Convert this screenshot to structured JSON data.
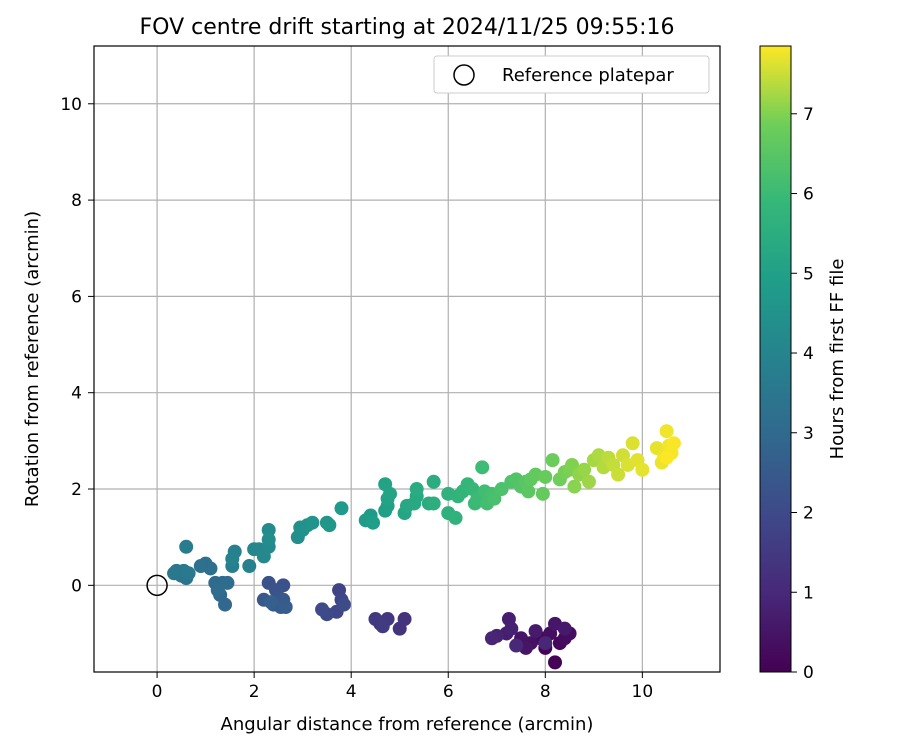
{
  "chart_data": {
    "type": "scatter",
    "title": "FOV centre drift starting at 2024/11/25 09:55:16",
    "xlabel": "Angular distance from reference (arcmin)",
    "ylabel": "Rotation from reference (arcmin)",
    "xlim": [
      -1.3,
      11.6
    ],
    "ylim": [
      -1.8,
      11.2
    ],
    "xticks": [
      0,
      2,
      4,
      6,
      8,
      10
    ],
    "yticks": [
      0,
      2,
      4,
      6,
      8,
      10
    ],
    "grid": true,
    "legend": {
      "position": "upper right",
      "entries": [
        "Reference platepar"
      ]
    },
    "reference_point": {
      "x": 0,
      "y": 0,
      "label": "Reference platepar"
    },
    "colorbar": {
      "label": "Hours from first FF file",
      "min": 0,
      "max": 7.85,
      "ticks": [
        0,
        1,
        2,
        3,
        4,
        5,
        6,
        7
      ],
      "colormap": "viridis"
    },
    "points": [
      {
        "x": 8.2,
        "y": -1.6,
        "t": 0.05
      },
      {
        "x": 8.0,
        "y": -1.3,
        "t": 0.1
      },
      {
        "x": 8.3,
        "y": -1.2,
        "t": 0.15
      },
      {
        "x": 7.9,
        "y": -1.1,
        "t": 0.2
      },
      {
        "x": 8.4,
        "y": -1.1,
        "t": 0.25
      },
      {
        "x": 8.5,
        "y": -1.0,
        "t": 0.3
      },
      {
        "x": 8.1,
        "y": -1.0,
        "t": 0.35
      },
      {
        "x": 7.7,
        "y": -1.2,
        "t": 0.4
      },
      {
        "x": 7.5,
        "y": -1.1,
        "t": 0.45
      },
      {
        "x": 7.6,
        "y": -1.3,
        "t": 0.5
      },
      {
        "x": 8.2,
        "y": -0.8,
        "t": 0.55
      },
      {
        "x": 8.4,
        "y": -0.9,
        "t": 0.6
      },
      {
        "x": 7.8,
        "y": -0.95,
        "t": 0.65
      },
      {
        "x": 7.2,
        "y": -1.0,
        "t": 0.7
      },
      {
        "x": 7.25,
        "y": -0.7,
        "t": 0.75
      },
      {
        "x": 7.3,
        "y": -0.9,
        "t": 0.8
      },
      {
        "x": 7.0,
        "y": -1.05,
        "t": 0.85
      },
      {
        "x": 6.9,
        "y": -1.1,
        "t": 0.9
      },
      {
        "x": 8.0,
        "y": -1.2,
        "t": 0.95
      },
      {
        "x": 7.4,
        "y": -1.25,
        "t": 1.0
      },
      {
        "x": 5.1,
        "y": -0.7,
        "t": 1.3
      },
      {
        "x": 5.0,
        "y": -0.9,
        "t": 1.35
      },
      {
        "x": 4.75,
        "y": -0.7,
        "t": 1.4
      },
      {
        "x": 4.6,
        "y": -0.8,
        "t": 1.45
      },
      {
        "x": 4.5,
        "y": -0.7,
        "t": 1.5
      },
      {
        "x": 4.65,
        "y": -0.85,
        "t": 1.55
      },
      {
        "x": 3.75,
        "y": -0.1,
        "t": 1.8
      },
      {
        "x": 3.8,
        "y": -0.3,
        "t": 1.85
      },
      {
        "x": 3.7,
        "y": -0.55,
        "t": 1.9
      },
      {
        "x": 3.5,
        "y": -0.6,
        "t": 1.95
      },
      {
        "x": 3.4,
        "y": -0.5,
        "t": 2.0
      },
      {
        "x": 3.85,
        "y": -0.4,
        "t": 2.05
      },
      {
        "x": 2.6,
        "y": 0.0,
        "t": 2.2
      },
      {
        "x": 2.3,
        "y": 0.05,
        "t": 2.25
      },
      {
        "x": 2.45,
        "y": -0.1,
        "t": 2.3
      },
      {
        "x": 2.5,
        "y": -0.25,
        "t": 2.35
      },
      {
        "x": 2.6,
        "y": -0.3,
        "t": 2.4
      },
      {
        "x": 2.2,
        "y": -0.3,
        "t": 2.45
      },
      {
        "x": 2.4,
        "y": -0.4,
        "t": 2.5
      },
      {
        "x": 2.55,
        "y": -0.45,
        "t": 2.55
      },
      {
        "x": 2.65,
        "y": -0.45,
        "t": 2.6
      },
      {
        "x": 2.35,
        "y": -0.35,
        "t": 2.65
      },
      {
        "x": 1.4,
        "y": -0.4,
        "t": 2.9
      },
      {
        "x": 1.3,
        "y": -0.2,
        "t": 2.95
      },
      {
        "x": 1.35,
        "y": 0.05,
        "t": 3.0
      },
      {
        "x": 1.2,
        "y": 0.05,
        "t": 3.05
      },
      {
        "x": 1.25,
        "y": -0.1,
        "t": 3.1
      },
      {
        "x": 1.45,
        "y": 0.05,
        "t": 3.15
      },
      {
        "x": 1.1,
        "y": 0.35,
        "t": 3.2
      },
      {
        "x": 1.0,
        "y": 0.45,
        "t": 3.25
      },
      {
        "x": 0.9,
        "y": 0.4,
        "t": 3.3
      },
      {
        "x": 0.6,
        "y": 0.15,
        "t": 3.35
      },
      {
        "x": 0.5,
        "y": 0.2,
        "t": 3.4
      },
      {
        "x": 0.4,
        "y": 0.3,
        "t": 3.45
      },
      {
        "x": 0.55,
        "y": 0.3,
        "t": 3.5
      },
      {
        "x": 0.35,
        "y": 0.25,
        "t": 3.55
      },
      {
        "x": 0.65,
        "y": 0.25,
        "t": 3.6
      },
      {
        "x": 0.6,
        "y": 0.8,
        "t": 3.7
      },
      {
        "x": 1.55,
        "y": 0.4,
        "t": 3.8
      },
      {
        "x": 1.6,
        "y": 0.7,
        "t": 3.85
      },
      {
        "x": 1.9,
        "y": 0.4,
        "t": 3.9
      },
      {
        "x": 1.55,
        "y": 0.55,
        "t": 3.95
      },
      {
        "x": 2.0,
        "y": 0.75,
        "t": 4.05
      },
      {
        "x": 2.1,
        "y": 0.75,
        "t": 4.1
      },
      {
        "x": 2.2,
        "y": 0.6,
        "t": 4.15
      },
      {
        "x": 2.3,
        "y": 0.8,
        "t": 4.2
      },
      {
        "x": 2.3,
        "y": 1.15,
        "t": 4.25
      },
      {
        "x": 2.3,
        "y": 0.95,
        "t": 4.3
      },
      {
        "x": 2.9,
        "y": 1.0,
        "t": 4.35
      },
      {
        "x": 2.95,
        "y": 1.2,
        "t": 4.4
      },
      {
        "x": 3.0,
        "y": 1.15,
        "t": 4.45
      },
      {
        "x": 3.1,
        "y": 1.25,
        "t": 4.5
      },
      {
        "x": 3.2,
        "y": 1.3,
        "t": 4.55
      },
      {
        "x": 3.5,
        "y": 1.3,
        "t": 4.6
      },
      {
        "x": 3.55,
        "y": 1.25,
        "t": 4.65
      },
      {
        "x": 3.8,
        "y": 1.6,
        "t": 4.75
      },
      {
        "x": 4.3,
        "y": 1.35,
        "t": 4.8
      },
      {
        "x": 4.4,
        "y": 1.45,
        "t": 4.85
      },
      {
        "x": 4.45,
        "y": 1.3,
        "t": 4.9
      },
      {
        "x": 4.7,
        "y": 1.55,
        "t": 4.95
      },
      {
        "x": 4.75,
        "y": 1.65,
        "t": 5.0
      },
      {
        "x": 4.75,
        "y": 1.8,
        "t": 5.05
      },
      {
        "x": 4.7,
        "y": 2.1,
        "t": 5.1
      },
      {
        "x": 4.8,
        "y": 1.9,
        "t": 5.15
      },
      {
        "x": 5.1,
        "y": 1.5,
        "t": 5.2
      },
      {
        "x": 5.15,
        "y": 1.65,
        "t": 5.25
      },
      {
        "x": 5.3,
        "y": 1.7,
        "t": 5.3
      },
      {
        "x": 5.35,
        "y": 1.85,
        "t": 5.35
      },
      {
        "x": 5.35,
        "y": 2.0,
        "t": 5.4
      },
      {
        "x": 5.6,
        "y": 1.7,
        "t": 5.45
      },
      {
        "x": 5.7,
        "y": 2.15,
        "t": 5.5
      },
      {
        "x": 5.7,
        "y": 1.7,
        "t": 5.55
      },
      {
        "x": 6.0,
        "y": 1.5,
        "t": 5.6
      },
      {
        "x": 6.0,
        "y": 1.9,
        "t": 5.65
      },
      {
        "x": 6.15,
        "y": 1.4,
        "t": 5.7
      },
      {
        "x": 6.2,
        "y": 1.85,
        "t": 5.75
      },
      {
        "x": 6.3,
        "y": 1.95,
        "t": 5.8
      },
      {
        "x": 6.4,
        "y": 2.1,
        "t": 5.85
      },
      {
        "x": 6.5,
        "y": 2.0,
        "t": 5.9
      },
      {
        "x": 6.55,
        "y": 1.7,
        "t": 5.95
      },
      {
        "x": 6.6,
        "y": 1.8,
        "t": 6.0
      },
      {
        "x": 6.7,
        "y": 2.45,
        "t": 6.05
      },
      {
        "x": 6.75,
        "y": 1.95,
        "t": 6.1
      },
      {
        "x": 6.8,
        "y": 1.7,
        "t": 6.15
      },
      {
        "x": 6.9,
        "y": 1.9,
        "t": 6.2
      },
      {
        "x": 6.95,
        "y": 1.8,
        "t": 6.25
      },
      {
        "x": 7.1,
        "y": 2.0,
        "t": 6.3
      },
      {
        "x": 7.3,
        "y": 2.15,
        "t": 6.35
      },
      {
        "x": 7.4,
        "y": 2.2,
        "t": 6.4
      },
      {
        "x": 7.5,
        "y": 2.05,
        "t": 6.45
      },
      {
        "x": 7.6,
        "y": 2.15,
        "t": 6.5
      },
      {
        "x": 7.65,
        "y": 1.95,
        "t": 6.55
      },
      {
        "x": 7.7,
        "y": 2.2,
        "t": 6.6
      },
      {
        "x": 7.8,
        "y": 2.3,
        "t": 6.65
      },
      {
        "x": 7.95,
        "y": 1.9,
        "t": 6.7
      },
      {
        "x": 8.0,
        "y": 2.25,
        "t": 6.75
      },
      {
        "x": 8.15,
        "y": 2.6,
        "t": 6.8
      },
      {
        "x": 8.3,
        "y": 2.2,
        "t": 6.85
      },
      {
        "x": 8.4,
        "y": 2.35,
        "t": 6.9
      },
      {
        "x": 8.5,
        "y": 2.4,
        "t": 6.95
      },
      {
        "x": 8.55,
        "y": 2.5,
        "t": 7.0
      },
      {
        "x": 8.6,
        "y": 2.05,
        "t": 7.05
      },
      {
        "x": 8.7,
        "y": 2.3,
        "t": 7.1
      },
      {
        "x": 8.8,
        "y": 2.4,
        "t": 7.15
      },
      {
        "x": 8.9,
        "y": 2.15,
        "t": 7.2
      },
      {
        "x": 9.0,
        "y": 2.6,
        "t": 7.25
      },
      {
        "x": 9.1,
        "y": 2.7,
        "t": 7.3
      },
      {
        "x": 9.2,
        "y": 2.45,
        "t": 7.35
      },
      {
        "x": 9.3,
        "y": 2.65,
        "t": 7.4
      },
      {
        "x": 9.4,
        "y": 2.5,
        "t": 7.45
      },
      {
        "x": 9.5,
        "y": 2.3,
        "t": 7.5
      },
      {
        "x": 9.6,
        "y": 2.7,
        "t": 7.55
      },
      {
        "x": 9.7,
        "y": 2.5,
        "t": 7.6
      },
      {
        "x": 9.8,
        "y": 2.95,
        "t": 7.62
      },
      {
        "x": 9.9,
        "y": 2.6,
        "t": 7.65
      },
      {
        "x": 10.0,
        "y": 2.4,
        "t": 7.68
      },
      {
        "x": 10.3,
        "y": 2.85,
        "t": 7.7
      },
      {
        "x": 10.4,
        "y": 2.55,
        "t": 7.72
      },
      {
        "x": 10.45,
        "y": 2.7,
        "t": 7.74
      },
      {
        "x": 10.5,
        "y": 3.2,
        "t": 7.76
      },
      {
        "x": 10.55,
        "y": 2.9,
        "t": 7.78
      },
      {
        "x": 10.6,
        "y": 2.75,
        "t": 7.8
      },
      {
        "x": 10.65,
        "y": 2.95,
        "t": 7.82
      },
      {
        "x": 10.5,
        "y": 2.65,
        "t": 7.84
      }
    ]
  }
}
